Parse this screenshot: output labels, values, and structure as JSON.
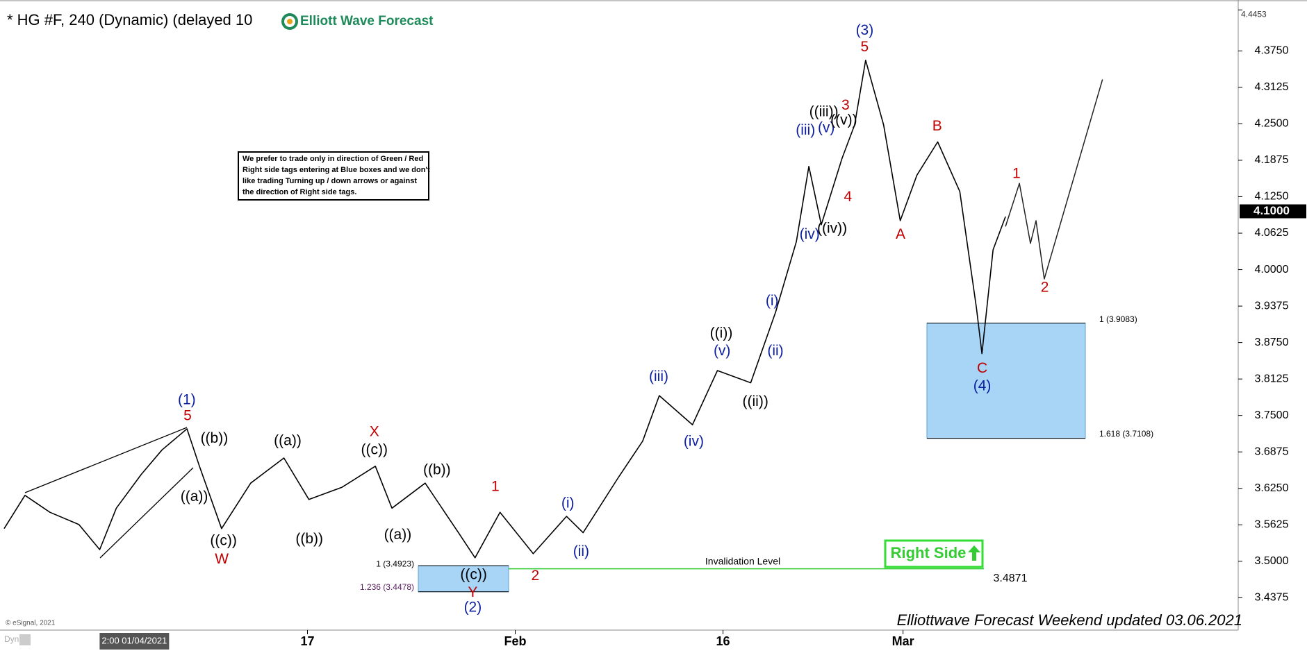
{
  "chart_data": {
    "type": "line",
    "title": "* HG #F, 240 (Dynamic) (delayed 10",
    "logo": "Elliott Wave Forecast",
    "note": [
      "We prefer to trade only in direction of Green / Red",
      "Right side tags entering at Blue boxes and we don't",
      "like trading Turning up / down arrows or against",
      "the direction of Right side tags."
    ],
    "footer": "Elliottwave Forecast Weekend updated 03.06.2021",
    "copyright": "© eSignal, 2021",
    "mode_label": "Dyn",
    "right_side": "Right Side",
    "xlim": [
      -9.2,
      80.2
    ],
    "ylim": [
      3.382,
      4.448
    ],
    "xticks": [
      {
        "value": 13,
        "label": "17"
      },
      {
        "value": 28,
        "label": "Feb"
      },
      {
        "value": 43,
        "label": "16"
      },
      {
        "value": 56,
        "label": "Mar"
      }
    ],
    "x_cursor": {
      "value": 0,
      "label": "2:00 01/04/2021"
    },
    "yticks": [
      {
        "value": 3.4375,
        "label": "3.4375"
      },
      {
        "value": 3.5,
        "label": "3.5000"
      },
      {
        "value": 3.5625,
        "label": "3.5625"
      },
      {
        "value": 3.625,
        "label": "3.6250"
      },
      {
        "value": 3.6875,
        "label": "3.6875"
      },
      {
        "value": 3.75,
        "label": "3.7500"
      },
      {
        "value": 3.8125,
        "label": "3.8125"
      },
      {
        "value": 3.875,
        "label": "3.8750"
      },
      {
        "value": 3.9375,
        "label": "3.9375"
      },
      {
        "value": 4.0,
        "label": "4.0000"
      },
      {
        "value": 4.0625,
        "label": "4.0625"
      },
      {
        "value": 4.125,
        "label": "4.1250"
      },
      {
        "value": 4.1875,
        "label": "4.1875"
      },
      {
        "value": 4.25,
        "label": "4.2500"
      },
      {
        "value": 4.3125,
        "label": "4.3125"
      },
      {
        "value": 4.375,
        "label": "4.3750"
      }
    ],
    "top_price": {
      "value": 4.4453,
      "label": "4.4453"
    },
    "last_price": {
      "value": 4.1,
      "label": "4.1000"
    },
    "series": [
      {
        "color": "#000000",
        "x": [
          -8.9,
          -7.4,
          -5.6,
          -3.5,
          -2.0,
          -0.8,
          1.0,
          2.5,
          4.3,
          5.2,
          6.8,
          8.9,
          11.3,
          13.1,
          15.5,
          17.9,
          19.1,
          21.5,
          23.9,
          25.1,
          26.9,
          29.3,
          31.7,
          32.9,
          35.4,
          37.2,
          38.4,
          40.8,
          42.6,
          45.0,
          46.8,
          48.3,
          49.2,
          50.1,
          51.6,
          52.5,
          53.3,
          54.6,
          55.8,
          57.0,
          58.5,
          60.1,
          61.3,
          61.7,
          62.5,
          63.4
        ],
        "values": [
          3.556,
          3.613,
          3.584,
          3.563,
          3.52,
          3.591,
          3.649,
          3.691,
          3.727,
          3.663,
          3.556,
          3.634,
          3.677,
          3.606,
          3.627,
          3.663,
          3.591,
          3.634,
          3.549,
          3.506,
          3.584,
          3.513,
          3.577,
          3.549,
          3.642,
          3.706,
          3.784,
          3.734,
          3.827,
          3.806,
          3.927,
          4.048,
          4.177,
          4.077,
          4.191,
          4.248,
          4.359,
          4.248,
          4.084,
          4.162,
          4.219,
          4.134,
          3.934,
          3.856,
          4.034,
          4.091
        ]
      },
      {
        "color": "#222222",
        "x": [
          63.4,
          64.4,
          65.2,
          65.6,
          66.2,
          70.4
        ],
        "values": [
          4.074,
          4.148,
          4.045,
          4.084,
          3.984,
          4.326
        ]
      }
    ],
    "boxes": [
      {
        "top": 3.9083,
        "bottom": 3.7108,
        "top_label": "1 (3.9083)",
        "bottom_label": "1.618 (3.7108)",
        "color": "#a8d4f5"
      },
      {
        "top": 3.4923,
        "bottom": 3.4478,
        "top_label": "1 (3.4923)",
        "bottom_label": "1.236 (3.4478)",
        "color": "#a8d4f5"
      }
    ],
    "invalidation": {
      "value": 3.4871,
      "label": "3.4871",
      "text": "Invalidation Level",
      "color": "#33cc33"
    },
    "annotations": [
      {
        "text": "(1)",
        "color": "#0b1fa0"
      },
      {
        "text": "(2)",
        "color": "#0b1fa0"
      },
      {
        "text": "(3)",
        "color": "#0b1fa0"
      },
      {
        "text": "(4)",
        "color": "#0b1fa0"
      },
      {
        "text": "(i)",
        "color": "#0b1fa0"
      },
      {
        "text": "(ii)",
        "color": "#0b1fa0"
      },
      {
        "text": "(iii)",
        "color": "#0b1fa0"
      },
      {
        "text": "(iv)",
        "color": "#0b1fa0"
      },
      {
        "text": "(v)",
        "color": "#0b1fa0"
      },
      {
        "text": "(i)",
        "color": "#0b1fa0"
      },
      {
        "text": "(ii)",
        "color": "#0b1fa0"
      },
      {
        "text": "(iii)",
        "color": "#0b1fa0"
      },
      {
        "text": "(iv)",
        "color": "#0b1fa0"
      },
      {
        "text": "(v)",
        "color": "#0b1fa0"
      },
      {
        "text": "5",
        "color": "#c00000"
      },
      {
        "text": "W",
        "color": "#c00000"
      },
      {
        "text": "X",
        "color": "#c00000"
      },
      {
        "text": "Y",
        "color": "#c00000"
      },
      {
        "text": "1",
        "color": "#c00000"
      },
      {
        "text": "2",
        "color": "#c00000"
      },
      {
        "text": "3",
        "color": "#c00000"
      },
      {
        "text": "4",
        "color": "#c00000"
      },
      {
        "text": "5",
        "color": "#c00000"
      },
      {
        "text": "A",
        "color": "#c00000"
      },
      {
        "text": "B",
        "color": "#c00000"
      },
      {
        "text": "C",
        "color": "#c00000"
      },
      {
        "text": "1",
        "color": "#c00000"
      },
      {
        "text": "2",
        "color": "#c00000"
      },
      {
        "text": "((b))",
        "color": "#000000"
      },
      {
        "text": "((a))",
        "color": "#000000"
      },
      {
        "text": "((c))",
        "color": "#000000"
      },
      {
        "text": "((a))",
        "color": "#000000"
      },
      {
        "text": "((b))",
        "color": "#000000"
      },
      {
        "text": "((c))",
        "color": "#000000"
      },
      {
        "text": "((a))",
        "color": "#000000"
      },
      {
        "text": "((b))",
        "color": "#000000"
      },
      {
        "text": "((c))",
        "color": "#000000"
      },
      {
        "text": "((i))",
        "color": "#000000"
      },
      {
        "text": "((ii))",
        "color": "#000000"
      },
      {
        "text": "((iii))",
        "color": "#000000"
      },
      {
        "text": "((v))",
        "color": "#000000"
      },
      {
        "text": "((iv))",
        "color": "#000000"
      }
    ]
  }
}
